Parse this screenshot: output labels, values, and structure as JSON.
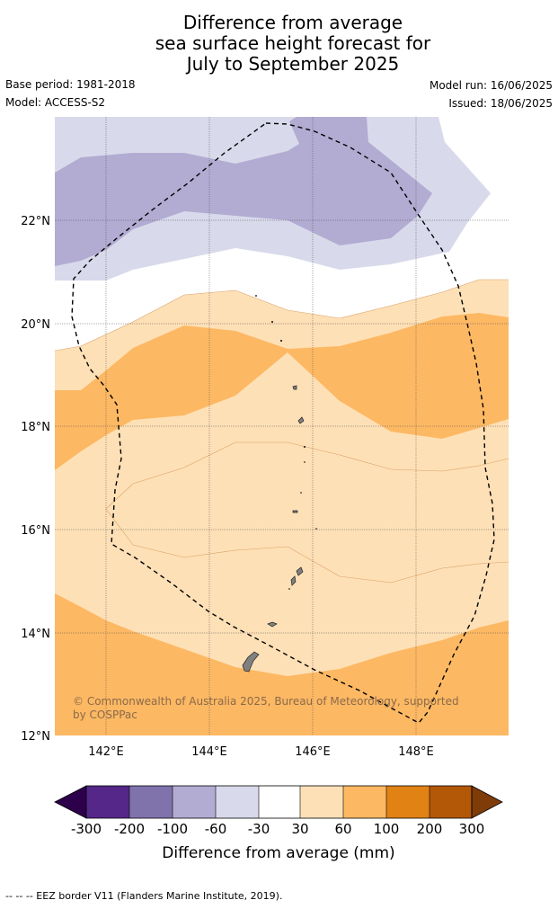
{
  "title_lines": [
    "Difference from average",
    "sea surface height forecast for",
    "July to September 2025"
  ],
  "base_period": "Base period: 1981-2018",
  "model": "Model: ACCESS-S2",
  "model_run": "Model run: 16/06/2025",
  "issued": "Issued: 18/06/2025",
  "copyright": [
    "© Commonwealth of Australia 2025, Bureau of Meteorology, supported",
    "by COSPPac"
  ],
  "lat_labels": [
    "22°N",
    "20°N",
    "18°N",
    "16°N",
    "14°N",
    "12°N"
  ],
  "lon_labels": [
    "142°E",
    "144°E",
    "146°E",
    "148°E"
  ],
  "colorbar": {
    "label": "Difference from average (mm)",
    "ticks": [
      "-300",
      "-200",
      "-100",
      "-60",
      "-30",
      "30",
      "60",
      "100",
      "200",
      "300"
    ],
    "colors": [
      "#2d004b",
      "#542788",
      "#8073ac",
      "#b2abd2",
      "#d8daeb",
      "#ffffff",
      "#fee0b6",
      "#fdb863",
      "#e08214",
      "#b35806",
      "#7f3b08"
    ]
  },
  "map_data": {
    "lon_range": [
      141,
      149.8
    ],
    "lat_range": [
      12,
      24
    ],
    "legend_footer": "--  --  -- EEZ border V11 (Flanders Marine Institute, 2019)."
  }
}
